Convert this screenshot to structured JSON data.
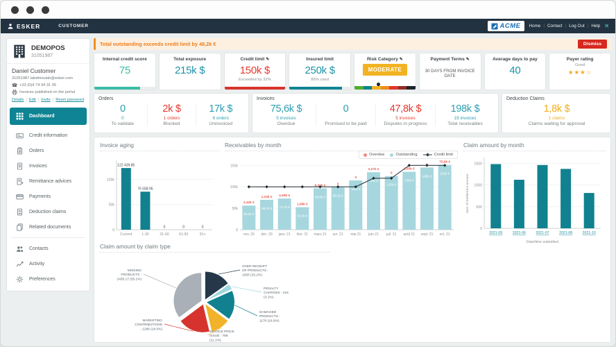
{
  "header": {
    "brand": "ESKER",
    "portal_tab": "CUSTOMER",
    "company_logo": "ACME",
    "links": {
      "home": "Home",
      "contact": "Contact",
      "logout": "Log Out",
      "help": "Help"
    }
  },
  "sidebar": {
    "company_name": "DEMOPOS",
    "company_id": "31051987",
    "contact_name": "Daniel Customer",
    "contact_email": "31051987.labdmoulah@esker.com",
    "contact_phone": "+33 (0)4 74 94 31 05",
    "portal_note": "Invoices published on the portal",
    "actions": {
      "details": "Details",
      "edit": "Edit",
      "invite": "Invite",
      "reset": "Reset password"
    },
    "nav": [
      {
        "label": "Dashboard",
        "active": true
      },
      {
        "label": "Credit information"
      },
      {
        "label": "Orders"
      },
      {
        "label": "Invoices"
      },
      {
        "label": "Remittance advices"
      },
      {
        "label": "Payments"
      },
      {
        "label": "Deduction claims"
      },
      {
        "label": "Related documents"
      }
    ],
    "nav_secondary": [
      {
        "label": "Contacts"
      },
      {
        "label": "Activity"
      },
      {
        "label": "Preferences"
      }
    ]
  },
  "alert": {
    "message": "Total outstanding exceeds credit limit by 48,2k €",
    "dismiss_label": "Dismiss"
  },
  "kpis": {
    "credit_score": {
      "title": "Internal credit score",
      "value": "75",
      "bar_pct": 75
    },
    "total_exposure": {
      "title": "Total exposure",
      "value": "215k $"
    },
    "credit_limit": {
      "title": "Credit limit",
      "value": "150k $",
      "sub": "Exceeded by 32%",
      "bar_pct": 100
    },
    "insured_limit": {
      "title": "Insured limit",
      "value": "250k $",
      "sub": "86% used",
      "bar_pct": 86
    },
    "risk_category": {
      "title": "Risk Category",
      "value": "MODERATE"
    },
    "payment_terms": {
      "title": "Payment Terms",
      "value": "30 DAYS FROM INVOICE DATE"
    },
    "avg_days_to_pay": {
      "title": "Average days to pay",
      "value": "40"
    },
    "payer_rating": {
      "title": "Payer rating",
      "value": "Good",
      "stars_display": "★★★☆"
    }
  },
  "orders": {
    "title": "Orders",
    "stats": [
      {
        "value": "0",
        "sub": "0",
        "label": "To validate",
        "tone": "teal"
      },
      {
        "value": "2k $",
        "sub": "1 orders",
        "label": "Blocked",
        "tone": "red"
      },
      {
        "value": "17k $",
        "sub": "6 orders",
        "label": "Uninvoiced",
        "tone": "teal"
      }
    ]
  },
  "invoices": {
    "title": "Invoices",
    "stats": [
      {
        "value": "75,6k $",
        "sub": "5 invoices",
        "label": "Overdue",
        "tone": "teal"
      },
      {
        "value": "0",
        "sub": "",
        "label": "Promised to be paid",
        "tone": "teal"
      },
      {
        "value": "47,8k $",
        "sub": "5 invoices",
        "label": "Disputes in progress",
        "tone": "red"
      },
      {
        "value": "198k $",
        "sub": "19 invoices",
        "label": "Total receivables",
        "tone": "teal"
      }
    ]
  },
  "deduction_claims": {
    "title": "Deduction Claims",
    "stats": [
      {
        "value": "1,8k $",
        "sub": "1 claims",
        "label": "Claims waiting for approval",
        "tone": "amber"
      }
    ]
  },
  "colors": {
    "accent_teal": "#0e8494",
    "accent_red": "#d7291f",
    "accent_amber": "#f2b322",
    "gauge": [
      "#4fae30",
      "#0e8290",
      "#f2b322",
      "#ef8b1f",
      "#e2352c",
      "#952f24",
      "#1d242a"
    ]
  },
  "chart_data": [
    {
      "id": "invoice_aging",
      "type": "bar",
      "title": "Invoice aging",
      "categories": [
        "Current",
        "1-30",
        "31-60",
        "61-90",
        "91+"
      ],
      "values": [
        122439.85,
        75558.95,
        0,
        0,
        0
      ],
      "value_labels": [
        "122 439.85",
        "75 558.95",
        "0",
        "0",
        "0"
      ],
      "ylim": [
        0,
        135000
      ],
      "yticks": [
        {
          "v": 0,
          "label": "0"
        },
        {
          "v": 50000,
          "label": "50k"
        },
        {
          "v": 100000,
          "label": "100k"
        }
      ],
      "bar_color": "#11818f"
    },
    {
      "id": "receivables_by_month",
      "type": "bar+line",
      "title": "Receivables by month",
      "categories": [
        "nov. 20",
        "déc. 20",
        "janv. 21",
        "févr. 21",
        "mars 21",
        "avr. 21",
        "mai 21",
        "juin 21",
        "juil. 21",
        "août 21",
        "sept. 21",
        "oct. 21"
      ],
      "legend": [
        {
          "label": "Overdue",
          "marker": "dot",
          "color": "#f2897c"
        },
        {
          "label": "Outstanding",
          "marker": "dot",
          "color": "#a7d7de"
        },
        {
          "label": "Credit limit",
          "marker": "line-diamond",
          "color": "#343f48"
        }
      ],
      "series": [
        {
          "name": "Outstanding",
          "type": "bar",
          "color": "#a7d7de",
          "values": [
            56300,
            69700,
            72700,
            52500,
            96500,
            99100,
            115000,
            134000,
            125000,
            135000,
            145000,
            151000
          ],
          "labels": [
            "56,3k €",
            "69,7k €",
            "72,7k €",
            "52,5k €",
            "96,5k €",
            "99,1k €",
            "115k €",
            "134k €",
            "125k €",
            "135k €",
            "145k €",
            "151k €"
          ]
        },
        {
          "name": "Overdue",
          "type": "label",
          "color": "#e8584a",
          "labels": [
            "2,32k €",
            "1,23k €",
            "4,59k €",
            "1,59k €",
            "6,32k €",
            "0",
            "0",
            "3,27k €",
            "0",
            "1,55k €",
            "0",
            "75,6k €"
          ]
        },
        {
          "name": "Credit limit",
          "type": "line",
          "color": "#343f48",
          "values": [
            100000,
            100000,
            100000,
            100000,
            100000,
            100000,
            100000,
            120000,
            120000,
            150000,
            150000,
            150000
          ]
        }
      ],
      "ylim": [
        0,
        165000
      ],
      "yticks": [
        {
          "v": 0,
          "label": "0"
        },
        {
          "v": 50000,
          "label": "50k"
        },
        {
          "v": 100000,
          "label": "100k"
        },
        {
          "v": 150000,
          "label": "150k"
        }
      ]
    },
    {
      "id": "claim_amount_by_month",
      "type": "bar",
      "title": "Claim amount by month",
      "categories": [
        "2021-05",
        "2021-06",
        "2021-07",
        "2021-08",
        "2021-10"
      ],
      "values": [
        1480,
        1120,
        1460,
        1370,
        815
      ],
      "xlabel": "Date/time submitted",
      "ylabel": "Sum of Settlement amount",
      "ylim": [
        0,
        1600
      ],
      "yticks": [
        {
          "v": 0,
          "label": "0"
        },
        {
          "v": 500,
          "label": "500"
        },
        {
          "v": 1000,
          "label": "1000"
        },
        {
          "v": 1500,
          "label": "1500"
        }
      ],
      "bar_color": "#11818f",
      "x_links": true
    },
    {
      "id": "claim_amount_by_claim_type",
      "type": "pie",
      "title": "Claim amount by claim type",
      "slices": [
        {
          "name": "Over receipt of products",
          "value": 1055,
          "pct": 15.2,
          "color": "#24384a",
          "label_lines": [
            "OVER RECEIPT",
            "OF PRODUCTS :",
            "1055 (15.2%)"
          ],
          "label_pos": [
            205,
            18
          ],
          "anchor": "start"
        },
        {
          "name": "Penalty charges",
          "value": 218,
          "pct": 3.1,
          "color": "#9fd6e0",
          "label_lines": [
            "PENALTY",
            "CHARGES : 218",
            "(3.1%)"
          ],
          "label_pos": [
            236,
            50
          ],
          "anchor": "start"
        },
        {
          "name": "Damaged products",
          "value": 1170,
          "pct": 16.9,
          "color": "#11818f",
          "label_lines": [
            "DAMAGED",
            "PRODUCTS :",
            "1170 (16.9%)"
          ],
          "label_pos": [
            230,
            84
          ],
          "anchor": "start"
        },
        {
          "name": "Invoice price issue",
          "value": 769,
          "pct": 11.1,
          "color": "#f0b329",
          "label_lines": [
            "INVOICE PRICE",
            "ISSUE : 769",
            "(11.1%)"
          ],
          "label_pos": [
            158,
            112
          ],
          "anchor": "start"
        },
        {
          "name": "Marketing contributions",
          "value": 1286,
          "pct": 18.5,
          "color": "#d6332e",
          "label_lines": [
            "MARKETING",
            "CONTRIBUTIONS",
            ": 1286 (18.5%)"
          ],
          "label_pos": [
            90,
            96
          ],
          "anchor": "end"
        },
        {
          "name": "Missing products",
          "value": 2435.17,
          "pct": 35.1,
          "color": "#a9b0b7",
          "label_lines": [
            "MISSING",
            "PRODUCTS :",
            "2435.17 (35.1%)"
          ],
          "label_pos": [
            60,
            24
          ],
          "anchor": "end"
        }
      ]
    }
  ]
}
